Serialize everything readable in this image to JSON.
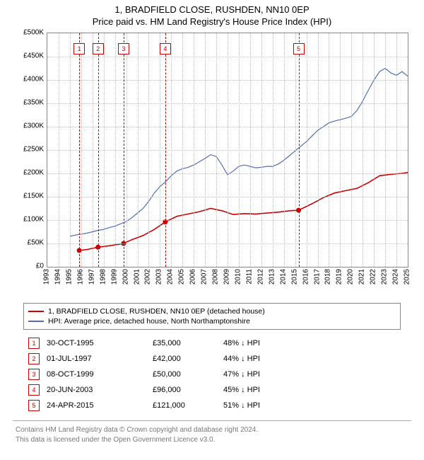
{
  "title": {
    "line1": "1, BRADFIELD CLOSE, RUSHDEN, NN10 0EP",
    "line2": "Price paid vs. HM Land Registry's House Price Index (HPI)"
  },
  "chart": {
    "type": "line",
    "background_color": "#ffffff",
    "grid_color": "#bfbfbf",
    "x": {
      "min": 1993,
      "max": 2025,
      "step": 1
    },
    "y": {
      "min": 0,
      "max": 500000,
      "step": 50000,
      "prefix": "£",
      "suffix": "K",
      "divisor": 1000
    },
    "series": [
      {
        "name": "1, BRADFIELD CLOSE, RUSHDEN, NN10 0EP (detached house)",
        "color": "#cc0000",
        "width": 1.6,
        "points": [
          [
            1995.83,
            35000
          ],
          [
            1996.5,
            37000
          ],
          [
            1997.5,
            42000
          ],
          [
            1998.5,
            45000
          ],
          [
            1999.77,
            50000
          ],
          [
            2000.5,
            58000
          ],
          [
            2001.5,
            67000
          ],
          [
            2002.5,
            80000
          ],
          [
            2003.47,
            96000
          ],
          [
            2004.5,
            108000
          ],
          [
            2005.5,
            113000
          ],
          [
            2006.5,
            118000
          ],
          [
            2007.5,
            125000
          ],
          [
            2008.5,
            120000
          ],
          [
            2009.5,
            112000
          ],
          [
            2010.5,
            114000
          ],
          [
            2011.5,
            113000
          ],
          [
            2012.5,
            115000
          ],
          [
            2013.5,
            117000
          ],
          [
            2014.5,
            120000
          ],
          [
            2015.31,
            121000
          ],
          [
            2016.5,
            135000
          ],
          [
            2017.5,
            148000
          ],
          [
            2018.5,
            158000
          ],
          [
            2019.5,
            163000
          ],
          [
            2020.5,
            168000
          ],
          [
            2021.5,
            180000
          ],
          [
            2022.5,
            195000
          ],
          [
            2023.5,
            198000
          ],
          [
            2024.5,
            200000
          ],
          [
            2025.0,
            202000
          ]
        ]
      },
      {
        "name": "HPI: Average price, detached house, North Northamptonshire",
        "color": "#4f6fb3",
        "width": 1.2,
        "points": [
          [
            1995.0,
            65000
          ],
          [
            1995.5,
            68000
          ],
          [
            1996.0,
            70000
          ],
          [
            1996.5,
            72000
          ],
          [
            1997.0,
            75000
          ],
          [
            1997.5,
            78000
          ],
          [
            1998.0,
            80000
          ],
          [
            1998.5,
            84000
          ],
          [
            1999.0,
            87000
          ],
          [
            1999.5,
            92000
          ],
          [
            2000.0,
            97000
          ],
          [
            2000.5,
            105000
          ],
          [
            2001.0,
            115000
          ],
          [
            2001.5,
            125000
          ],
          [
            2002.0,
            140000
          ],
          [
            2002.5,
            158000
          ],
          [
            2003.0,
            172000
          ],
          [
            2003.5,
            182000
          ],
          [
            2004.0,
            195000
          ],
          [
            2004.5,
            205000
          ],
          [
            2005.0,
            210000
          ],
          [
            2005.5,
            213000
          ],
          [
            2006.0,
            218000
          ],
          [
            2006.5,
            225000
          ],
          [
            2007.0,
            232000
          ],
          [
            2007.5,
            240000
          ],
          [
            2008.0,
            236000
          ],
          [
            2008.5,
            218000
          ],
          [
            2009.0,
            197000
          ],
          [
            2009.5,
            205000
          ],
          [
            2010.0,
            215000
          ],
          [
            2010.5,
            218000
          ],
          [
            2011.0,
            215000
          ],
          [
            2011.5,
            212000
          ],
          [
            2012.0,
            213000
          ],
          [
            2012.5,
            215000
          ],
          [
            2013.0,
            215000
          ],
          [
            2013.5,
            220000
          ],
          [
            2014.0,
            228000
          ],
          [
            2014.5,
            238000
          ],
          [
            2015.0,
            248000
          ],
          [
            2015.5,
            258000
          ],
          [
            2016.0,
            268000
          ],
          [
            2016.5,
            280000
          ],
          [
            2017.0,
            292000
          ],
          [
            2017.5,
            300000
          ],
          [
            2018.0,
            308000
          ],
          [
            2018.5,
            312000
          ],
          [
            2019.0,
            315000
          ],
          [
            2019.5,
            318000
          ],
          [
            2020.0,
            322000
          ],
          [
            2020.5,
            335000
          ],
          [
            2021.0,
            355000
          ],
          [
            2021.5,
            378000
          ],
          [
            2022.0,
            400000
          ],
          [
            2022.5,
            418000
          ],
          [
            2023.0,
            425000
          ],
          [
            2023.5,
            415000
          ],
          [
            2024.0,
            410000
          ],
          [
            2024.5,
            418000
          ],
          [
            2025.0,
            408000
          ]
        ]
      }
    ],
    "transactions": [
      {
        "n": "1",
        "year": 1995.83,
        "date": "30-OCT-1995",
        "price": 35000,
        "price_fmt": "£35,000",
        "diff": "48% ↓ HPI"
      },
      {
        "n": "2",
        "year": 1997.5,
        "date": "01-JUL-1997",
        "price": 42000,
        "price_fmt": "£42,000",
        "diff": "44% ↓ HPI"
      },
      {
        "n": "3",
        "year": 1999.77,
        "date": "08-OCT-1999",
        "price": 50000,
        "price_fmt": "£50,000",
        "diff": "47% ↓ HPI"
      },
      {
        "n": "4",
        "year": 2003.47,
        "date": "20-JUN-2003",
        "price": 96000,
        "price_fmt": "£96,000",
        "diff": "45% ↓ HPI"
      },
      {
        "n": "5",
        "year": 2015.31,
        "date": "24-APR-2015",
        "price": 121000,
        "price_fmt": "£121,000",
        "diff": "51% ↓ HPI"
      }
    ]
  },
  "footer": {
    "line1": "Contains HM Land Registry data © Crown copyright and database right 2024.",
    "line2": "This data is licensed under the Open Government Licence v3.0."
  }
}
